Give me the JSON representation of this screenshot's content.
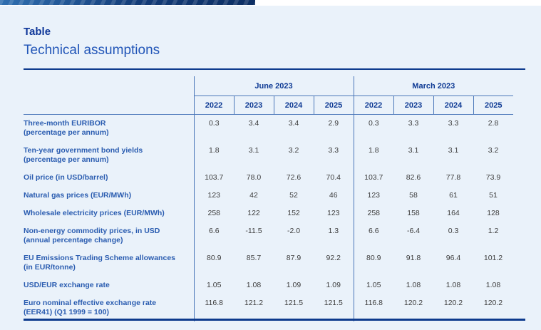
{
  "page": {
    "title": "Table",
    "subtitle": "Technical assumptions"
  },
  "colors": {
    "accent_navy": "#0d3a8d",
    "panel_background": "#eaf2fa",
    "label_blue": "#2a5cb0",
    "header_blue": "#0e3a94",
    "grid_blue": "#4a77b9",
    "value_gray": "#3d3d3d"
  },
  "table": {
    "groups": [
      {
        "label": "June 2023",
        "years": [
          "2022",
          "2023",
          "2024",
          "2025"
        ]
      },
      {
        "label": "March 2023",
        "years": [
          "2022",
          "2023",
          "2024",
          "2025"
        ]
      }
    ],
    "rows": [
      {
        "label": "Three-month EURIBOR",
        "sublabel": "(percentage per annum)",
        "june": [
          "0.3",
          "3.4",
          "3.4",
          "2.9"
        ],
        "march": [
          "0.3",
          "3.3",
          "3.3",
          "2.8"
        ]
      },
      {
        "label": "Ten-year government bond yields",
        "sublabel": "(percentage per annum)",
        "june": [
          "1.8",
          "3.1",
          "3.2",
          "3.3"
        ],
        "march": [
          "1.8",
          "3.1",
          "3.1",
          "3.2"
        ]
      },
      {
        "label": "Oil price (in USD/barrel)",
        "sublabel": "",
        "june": [
          "103.7",
          "78.0",
          "72.6",
          "70.4"
        ],
        "march": [
          "103.7",
          "82.6",
          "77.8",
          "73.9"
        ]
      },
      {
        "label": "Natural gas prices (EUR/MWh)",
        "sublabel": "",
        "june": [
          "123",
          "42",
          "52",
          "46"
        ],
        "march": [
          "123",
          "58",
          "61",
          "51"
        ]
      },
      {
        "label": "Wholesale electricity prices (EUR/MWh)",
        "sublabel": "",
        "june": [
          "258",
          "122",
          "152",
          "123"
        ],
        "march": [
          "258",
          "158",
          "164",
          "128"
        ]
      },
      {
        "label": "Non-energy commodity prices, in USD",
        "sublabel": "(annual percentage change)",
        "june": [
          "6.6",
          "-11.5",
          "-2.0",
          "1.3"
        ],
        "march": [
          "6.6",
          "-6.4",
          "0.3",
          "1.2"
        ]
      },
      {
        "label": "EU Emissions Trading Scheme allowances",
        "sublabel": "(in EUR/tonne)",
        "june": [
          "80.9",
          "85.7",
          "87.9",
          "92.2"
        ],
        "march": [
          "80.9",
          "91.8",
          "96.4",
          "101.2"
        ]
      },
      {
        "label": "USD/EUR exchange rate",
        "sublabel": "",
        "june": [
          "1.05",
          "1.08",
          "1.09",
          "1.09"
        ],
        "march": [
          "1.05",
          "1.08",
          "1.08",
          "1.08"
        ]
      },
      {
        "label": "Euro nominal effective exchange rate",
        "sublabel": "(EER41) (Q1 1999 = 100)",
        "june": [
          "116.8",
          "121.2",
          "121.5",
          "121.5"
        ],
        "march": [
          "116.8",
          "120.2",
          "120.2",
          "120.2"
        ]
      }
    ]
  }
}
